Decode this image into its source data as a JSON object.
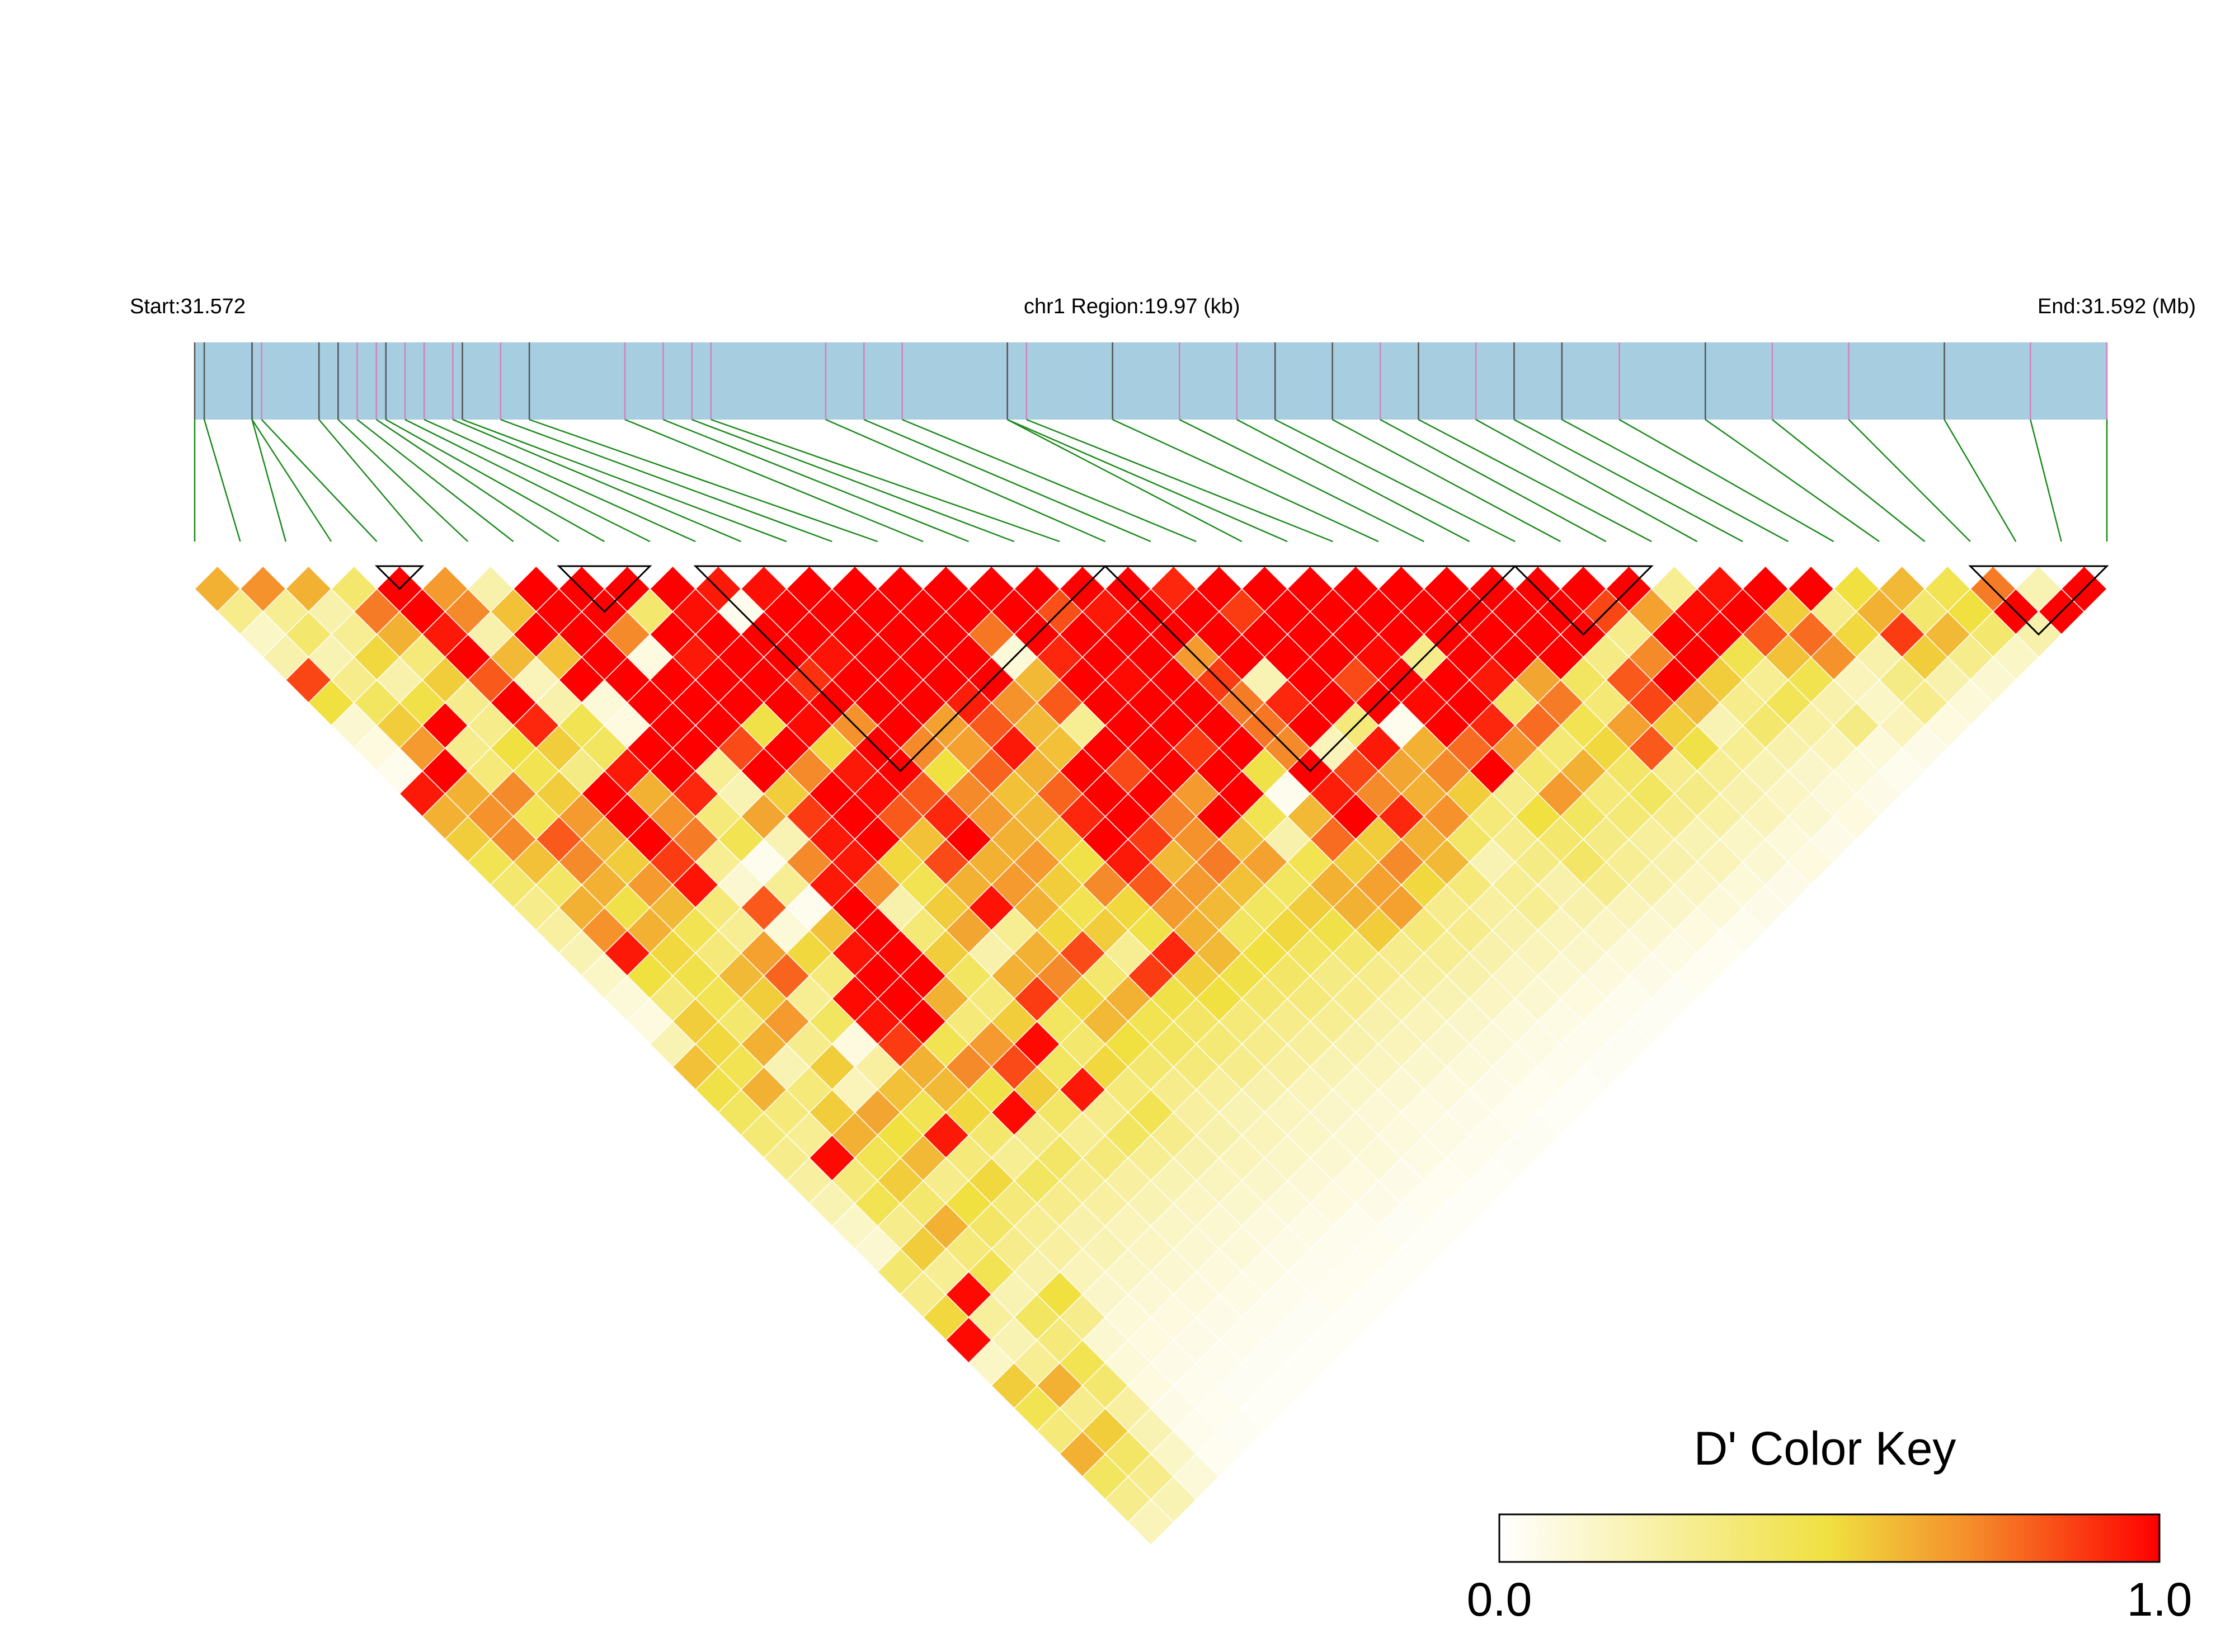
{
  "labels": {
    "start": "Start:31.572",
    "region": "chr1 Region:19.97 (kb)",
    "end": "End:31.592 (Mb)",
    "key_title": "D' Color Key",
    "key_min": "0.0",
    "key_max": "1.0"
  },
  "colors": {
    "track": "#a6cde0",
    "marker_dark": "#555555",
    "marker_pink": "#d67fc0",
    "connector": "#1a8a1a",
    "ld_low": "#ffffff",
    "ld_mid": "#f0e040",
    "ld_orange": "#f58a2a",
    "ld_high": "#ff0000"
  },
  "chart_data": {
    "type": "heatmap",
    "title": "",
    "region_start_mb": 31.572,
    "region_end_mb": 31.592,
    "region_length_kb": 19.97,
    "chromosome": "chr1",
    "n_snps": 43,
    "snp_positions_mb": [
      31.572,
      31.5721,
      31.5726,
      31.5726,
      31.5727,
      31.5733,
      31.5735,
      31.5737,
      31.5739,
      31.574,
      31.5742,
      31.5744,
      31.5747,
      31.5748,
      31.5752,
      31.5755,
      31.5765,
      31.5769,
      31.5772,
      31.5774,
      31.5786,
      31.579,
      31.5794,
      31.5805,
      31.5805,
      31.5807,
      31.5816,
      31.5823,
      31.5829,
      31.5833,
      31.5839,
      31.5844,
      31.5848,
      31.5854,
      31.5858,
      31.5863,
      31.5869,
      31.5878,
      31.5885,
      31.5893,
      31.5903,
      31.5912,
      31.592
    ],
    "marker_kind": [
      "d",
      "d",
      "d",
      "d",
      "p",
      "d",
      "d",
      "p",
      "p",
      "d",
      "p",
      "p",
      "p",
      "d",
      "p",
      "d",
      "p",
      "p",
      "p",
      "p",
      "p",
      "p",
      "p",
      "p",
      "d",
      "p",
      "d",
      "p",
      "p",
      "d",
      "d",
      "p",
      "d",
      "p",
      "d",
      "d",
      "p",
      "d",
      "p",
      "p",
      "d",
      "p",
      "p"
    ],
    "ld_blocks": [
      [
        4,
        5
      ],
      [
        8,
        10
      ],
      [
        11,
        20
      ],
      [
        20,
        29
      ],
      [
        29,
        32
      ],
      [
        39,
        42
      ]
    ],
    "color_key": {
      "label": "D'",
      "min": 0.0,
      "max": 1.0
    },
    "d_prime": [
      [
        0.62,
        0.7,
        0.62,
        0.38,
        1.0,
        0.68,
        0.22,
        1.0,
        1.0,
        1.0,
        1.0,
        0.95,
        0.97,
        1.0,
        1.0,
        1.0,
        1.0,
        1.0,
        1.0,
        1.0,
        1.0,
        0.92,
        1.0,
        1.0,
        1.0,
        1.0,
        1.0,
        1.0,
        1.0,
        1.0,
        1.0,
        1.0,
        0.28,
        0.96,
        1.0,
        1.0,
        0.5,
        0.6,
        0.45,
        0.75,
        0.2,
        1.0
      ],
      [
        0.3,
        0.28,
        0.22,
        0.75,
        1.0,
        0.72,
        0.58,
        1.0,
        1.0,
        0.38,
        0.97,
        0.05,
        1.0,
        1.0,
        1.0,
        1.0,
        1.0,
        1.0,
        0.84,
        0.95,
        1.0,
        1.0,
        0.88,
        1.0,
        1.0,
        1.0,
        1.0,
        1.0,
        1.0,
        1.0,
        0.86,
        0.66,
        0.98,
        1.0,
        0.55,
        0.3,
        0.62,
        0.38,
        0.5,
        1.0,
        1.0
      ],
      [
        0.15,
        0.38,
        0.28,
        0.62,
        0.95,
        0.22,
        1.0,
        1.0,
        0.72,
        1.0,
        1.0,
        1.0,
        1.0,
        1.0,
        1.0,
        1.0,
        0.76,
        1.0,
        1.0,
        1.0,
        1.0,
        1.0,
        1.0,
        1.0,
        1.0,
        1.0,
        1.0,
        1.0,
        1.0,
        1.0,
        0.3,
        1.0,
        1.0,
        0.82,
        0.78,
        0.52,
        0.88,
        0.6,
        0.38,
        0.22
      ],
      [
        0.22,
        0.2,
        0.52,
        0.35,
        1.0,
        0.6,
        0.58,
        1.0,
        0.08,
        0.95,
        1.0,
        1.0,
        0.96,
        1.0,
        1.0,
        1.0,
        0.1,
        0.92,
        1.0,
        1.0,
        0.68,
        1.0,
        1.0,
        1.0,
        0.98,
        0.3,
        1.0,
        1.0,
        1.0,
        0.32,
        0.72,
        1.0,
        0.46,
        0.58,
        0.7,
        0.22,
        0.55,
        0.3,
        0.15
      ],
      [
        0.86,
        0.3,
        0.22,
        0.55,
        0.82,
        0.18,
        1.0,
        1.0,
        1.0,
        1.0,
        1.0,
        0.9,
        1.0,
        1.0,
        1.0,
        1.0,
        0.6,
        1.0,
        0.98,
        1.0,
        0.88,
        0.2,
        1.0,
        0.85,
        1.0,
        1.0,
        0.95,
        0.65,
        0.42,
        0.82,
        1.0,
        0.55,
        0.28,
        0.46,
        0.18,
        0.32,
        0.22,
        0.12
      ],
      [
        0.5,
        0.42,
        0.48,
        0.3,
        1.0,
        0.22,
        0.1,
        1.0,
        1.0,
        1.0,
        1.0,
        1.0,
        1.0,
        1.0,
        0.94,
        0.7,
        0.82,
        1.0,
        1.0,
        1.0,
        0.75,
        0.92,
        1.0,
        1.0,
        0.98,
        1.0,
        0.4,
        0.75,
        0.36,
        0.86,
        0.6,
        0.3,
        0.44,
        0.22,
        0.15,
        0.3,
        0.1
      ],
      [
        0.12,
        0.55,
        1.0,
        0.3,
        0.92,
        0.45,
        0.08,
        1.0,
        1.0,
        0.48,
        0.98,
        0.7,
        1.0,
        0.66,
        0.82,
        0.6,
        0.28,
        1.0,
        1.0,
        1.0,
        0.76,
        1.0,
        0.35,
        0.05,
        1.0,
        0.92,
        0.78,
        0.45,
        0.66,
        0.55,
        0.2,
        0.38,
        0.24,
        0.32,
        0.18,
        0.08
      ],
      [
        0.08,
        0.68,
        0.3,
        0.5,
        0.55,
        0.42,
        1.0,
        1.0,
        0.85,
        1.0,
        0.52,
        1.0,
        0.72,
        0.66,
        0.95,
        0.58,
        1.0,
        1.0,
        0.88,
        1.0,
        0.72,
        0.18,
        0.95,
        0.62,
        0.78,
        0.7,
        0.36,
        0.52,
        0.82,
        0.48,
        0.28,
        0.22,
        0.18,
        0.1,
        0.06
      ],
      [
        0.05,
        1.0,
        0.35,
        0.45,
        0.32,
        0.95,
        1.0,
        0.28,
        1.0,
        0.72,
        0.95,
        1.0,
        0.5,
        0.8,
        0.62,
        1.0,
        0.85,
        1.0,
        1.0,
        0.48,
        1.0,
        0.86,
        0.65,
        0.72,
        1.0,
        0.38,
        0.62,
        0.4,
        0.3,
        0.28,
        0.2,
        0.14,
        0.1,
        0.05
      ],
      [
        0.95,
        0.62,
        0.72,
        0.55,
        1.0,
        0.62,
        0.92,
        0.2,
        0.55,
        1.0,
        0.98,
        0.82,
        0.72,
        0.58,
        0.8,
        1.0,
        1.0,
        0.68,
        1.0,
        0.05,
        0.94,
        0.72,
        0.62,
        0.55,
        0.3,
        0.68,
        0.35,
        0.42,
        0.32,
        0.22,
        0.16,
        0.1,
        0.06
      ],
      [
        0.62,
        0.7,
        0.45,
        0.68,
        1.0,
        0.7,
        0.35,
        0.65,
        0.88,
        1.0,
        0.82,
        0.92,
        0.68,
        0.6,
        0.92,
        1.0,
        0.74,
        1.0,
        0.45,
        0.6,
        1.0,
        0.92,
        0.7,
        0.35,
        0.5,
        0.42,
        0.36,
        0.3,
        0.24,
        0.18,
        0.12,
        0.08
      ],
      [
        0.55,
        0.72,
        0.82,
        0.6,
        1.0,
        0.75,
        0.45,
        0.2,
        0.95,
        1.0,
        0.58,
        1.0,
        0.62,
        0.55,
        1.0,
        0.88,
        0.7,
        0.58,
        0.22,
        0.78,
        0.55,
        0.62,
        0.4,
        0.3,
        0.38,
        0.32,
        0.26,
        0.2,
        0.15,
        0.1,
        0.06
      ],
      [
        0.45,
        0.58,
        0.72,
        0.55,
        0.88,
        0.28,
        0.05,
        0.72,
        0.95,
        0.52,
        0.85,
        0.62,
        0.68,
        0.48,
        0.95,
        0.6,
        0.75,
        0.66,
        0.45,
        0.55,
        0.72,
        0.6,
        0.2,
        0.32,
        0.4,
        0.28,
        0.22,
        0.18,
        0.12,
        0.08
      ],
      [
        0.38,
        0.4,
        0.62,
        0.68,
        0.96,
        0.12,
        0.28,
        0.95,
        0.7,
        0.45,
        0.62,
        0.68,
        0.55,
        0.72,
        0.82,
        0.68,
        0.58,
        0.42,
        0.62,
        0.66,
        0.52,
        0.35,
        0.28,
        0.22,
        0.3,
        0.22,
        0.16,
        0.1,
        0.06
      ],
      [
        0.3,
        0.62,
        0.48,
        0.6,
        0.35,
        0.82,
        0.05,
        1.0,
        0.22,
        0.55,
        0.96,
        0.62,
        0.45,
        0.52,
        0.68,
        0.6,
        0.42,
        0.55,
        0.62,
        0.66,
        0.3,
        0.25,
        0.28,
        0.22,
        0.18,
        0.14,
        0.1,
        0.06
      ],
      [
        0.25,
        0.7,
        0.62,
        0.45,
        0.28,
        0.1,
        0.58,
        1.0,
        0.36,
        0.65,
        0.28,
        0.52,
        0.55,
        0.48,
        0.62,
        0.42,
        0.52,
        0.48,
        0.55,
        0.35,
        0.3,
        0.22,
        0.18,
        0.16,
        0.12,
        0.08,
        0.05
      ],
      [
        0.2,
        0.95,
        0.52,
        0.35,
        0.66,
        0.52,
        0.96,
        1.0,
        0.55,
        0.22,
        0.62,
        0.85,
        0.28,
        0.92,
        0.6,
        0.5,
        0.42,
        0.38,
        0.3,
        0.28,
        0.22,
        0.18,
        0.14,
        0.1,
        0.07,
        0.04
      ],
      [
        0.15,
        0.5,
        0.48,
        0.6,
        0.8,
        0.35,
        1.0,
        1.0,
        0.42,
        0.62,
        0.72,
        0.38,
        0.88,
        0.55,
        0.48,
        0.4,
        0.32,
        0.3,
        0.26,
        0.22,
        0.16,
        0.12,
        0.09,
        0.06,
        0.04
      ],
      [
        0.1,
        0.35,
        0.45,
        0.55,
        0.28,
        0.98,
        1.0,
        0.62,
        0.35,
        0.88,
        0.52,
        0.62,
        0.48,
        0.5,
        0.38,
        0.35,
        0.3,
        0.24,
        0.2,
        0.16,
        0.12,
        0.08,
        0.05,
        0.03
      ],
      [
        0.08,
        0.55,
        0.38,
        0.68,
        0.42,
        0.96,
        1.0,
        0.35,
        0.55,
        0.42,
        0.6,
        0.45,
        0.4,
        0.35,
        0.3,
        0.28,
        0.22,
        0.18,
        0.14,
        0.1,
        0.07,
        0.05,
        0.03
      ],
      [
        0.2,
        0.52,
        0.62,
        0.3,
        0.08,
        0.88,
        0.45,
        0.68,
        0.98,
        0.38,
        0.5,
        0.42,
        0.36,
        0.3,
        0.26,
        0.22,
        0.18,
        0.14,
        0.1,
        0.07,
        0.05,
        0.03
      ],
      [
        0.58,
        0.45,
        0.2,
        0.55,
        0.25,
        0.62,
        0.72,
        0.85,
        0.42,
        0.52,
        0.38,
        0.35,
        0.3,
        0.25,
        0.2,
        0.17,
        0.13,
        0.1,
        0.07,
        0.05,
        0.03
      ],
      [
        0.48,
        0.62,
        0.35,
        0.18,
        0.58,
        0.6,
        0.48,
        0.55,
        0.95,
        0.35,
        0.3,
        0.26,
        0.22,
        0.18,
        0.15,
        0.12,
        0.09,
        0.06,
        0.04,
        0.02
      ],
      [
        0.42,
        0.35,
        0.55,
        0.65,
        0.45,
        0.52,
        0.98,
        0.4,
        0.3,
        0.45,
        0.25,
        0.2,
        0.17,
        0.14,
        0.11,
        0.08,
        0.06,
        0.04,
        0.02
      ],
      [
        0.36,
        0.28,
        0.62,
        0.5,
        0.95,
        0.38,
        0.32,
        0.28,
        0.42,
        0.3,
        0.22,
        0.18,
        0.15,
        0.12,
        0.09,
        0.07,
        0.05,
        0.03
      ],
      [
        0.3,
        0.98,
        0.45,
        0.6,
        0.35,
        0.28,
        0.4,
        0.35,
        0.28,
        0.22,
        0.18,
        0.15,
        0.12,
        0.1,
        0.07,
        0.05,
        0.03
      ],
      [
        0.25,
        0.35,
        0.55,
        0.3,
        0.52,
        0.42,
        0.3,
        0.25,
        0.2,
        0.17,
        0.14,
        0.11,
        0.08,
        0.06,
        0.04,
        0.02
      ],
      [
        0.2,
        0.45,
        0.38,
        0.5,
        0.35,
        0.3,
        0.25,
        0.2,
        0.16,
        0.13,
        0.1,
        0.08,
        0.06,
        0.04,
        0.02
      ],
      [
        0.15,
        0.3,
        0.62,
        0.4,
        0.28,
        0.22,
        0.18,
        0.15,
        0.12,
        0.09,
        0.07,
        0.05,
        0.03,
        0.02
      ],
      [
        0.12,
        0.55,
        0.35,
        0.3,
        0.25,
        0.2,
        0.16,
        0.12,
        0.1,
        0.07,
        0.05,
        0.04,
        0.02
      ],
      [
        0.38,
        0.28,
        0.45,
        0.22,
        0.18,
        0.15,
        0.12,
        0.09,
        0.07,
        0.05,
        0.04,
        0.02
      ],
      [
        0.3,
        0.98,
        0.2,
        0.5,
        0.14,
        0.11,
        0.09,
        0.07,
        0.05,
        0.04,
        0.02
      ],
      [
        0.52,
        0.26,
        0.42,
        0.3,
        0.1,
        0.08,
        0.06,
        0.05,
        0.03,
        0.02
      ],
      [
        0.98,
        0.2,
        0.35,
        0.12,
        0.08,
        0.06,
        0.05,
        0.03,
        0.02
      ],
      [
        0.15,
        0.28,
        0.45,
        0.1,
        0.06,
        0.05,
        0.03,
        0.02
      ],
      [
        0.55,
        0.62,
        0.38,
        0.08,
        0.05,
        0.03,
        0.02
      ],
      [
        0.45,
        0.3,
        0.25,
        0.06,
        0.04,
        0.02
      ],
      [
        0.35,
        0.55,
        0.2,
        0.05,
        0.03
      ],
      [
        0.62,
        0.4,
        0.15,
        0.04
      ],
      [
        0.42,
        0.3,
        0.1
      ],
      [
        0.3,
        0.2
      ],
      [
        0.18
      ]
    ]
  }
}
